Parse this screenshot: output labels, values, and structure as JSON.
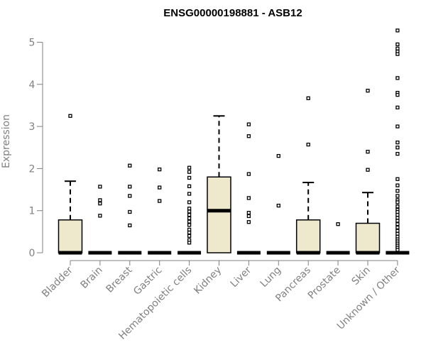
{
  "chart_data": {
    "type": "boxplot",
    "title": "ENSG00000198881 - ASB12",
    "ylabel": "Expression",
    "xlabel": "",
    "ylim": [
      0,
      5.3
    ],
    "yticks": [
      "0",
      "1",
      "2",
      "3",
      "4",
      "5"
    ],
    "box_fill": "#EEE8CD",
    "categories": [
      "Bladder",
      "Brain",
      "Breast",
      "Gastric",
      "Hematopoietic cells",
      "Kidney",
      "Liver",
      "Lung",
      "Pancreas",
      "Prostate",
      "Skin",
      "Unknown / Other"
    ],
    "boxes": [
      {
        "q1": 0,
        "median": 0,
        "q3": 0.78,
        "whisker_low": 0,
        "whisker_high": 1.7,
        "outliers": [
          3.25
        ]
      },
      {
        "q1": 0,
        "median": 0,
        "q3": 0,
        "whisker_low": 0,
        "whisker_high": 0,
        "outliers": [
          1.57,
          1.25,
          1.17,
          0.88
        ]
      },
      {
        "q1": 0,
        "median": 0,
        "q3": 0,
        "whisker_low": 0,
        "whisker_high": 0,
        "outliers": [
          2.07,
          1.57,
          1.35,
          0.97,
          0.65
        ]
      },
      {
        "q1": 0,
        "median": 0,
        "q3": 0,
        "whisker_low": 0,
        "whisker_high": 0,
        "outliers": [
          1.98,
          1.55,
          1.23
        ]
      },
      {
        "q1": 0,
        "median": 0,
        "q3": 0,
        "whisker_low": 0,
        "whisker_high": 0,
        "outliers": [
          2.02,
          1.92,
          1.78,
          1.58,
          1.4,
          1.2,
          1.05,
          0.98,
          0.9,
          0.82,
          0.74,
          0.66,
          0.55,
          0.48,
          0.4,
          0.3,
          0.24
        ]
      },
      {
        "q1": 0,
        "median": 1.0,
        "q3": 1.8,
        "whisker_low": 0,
        "whisker_high": 3.25,
        "outliers": []
      },
      {
        "q1": 0,
        "median": 0,
        "q3": 0,
        "whisker_low": 0,
        "whisker_high": 0,
        "outliers": [
          3.05,
          2.77,
          1.87,
          1.3,
          0.95,
          0.87,
          0.73
        ]
      },
      {
        "q1": 0,
        "median": 0,
        "q3": 0,
        "whisker_low": 0,
        "whisker_high": 0,
        "outliers": [
          2.3,
          1.12
        ]
      },
      {
        "q1": 0,
        "median": 0,
        "q3": 0.78,
        "whisker_low": 0,
        "whisker_high": 1.67,
        "outliers": [
          3.67,
          2.57
        ]
      },
      {
        "q1": 0,
        "median": 0,
        "q3": 0,
        "whisker_low": 0,
        "whisker_high": 0,
        "outliers": [
          0.68
        ]
      },
      {
        "q1": 0,
        "median": 0,
        "q3": 0.7,
        "whisker_low": 0,
        "whisker_high": 1.43,
        "outliers": [
          3.85,
          2.4,
          1.97
        ]
      },
      {
        "q1": 0,
        "median": 0,
        "q3": 0,
        "whisker_low": 0,
        "whisker_high": 0,
        "outliers": [
          5.28,
          4.95,
          4.85,
          4.78,
          4.72,
          4.15,
          3.8,
          3.75,
          3.45,
          3.0,
          2.62,
          2.5,
          2.35,
          1.75,
          1.6,
          1.47,
          1.35,
          1.25,
          1.2,
          1.1,
          1.02,
          0.97,
          0.9,
          0.83,
          0.76,
          0.68,
          0.6,
          0.52,
          0.45,
          0.38,
          0.32,
          0.27,
          0.22,
          0.17,
          0.12,
          0.07
        ]
      }
    ],
    "grid": false,
    "legend": "none"
  }
}
